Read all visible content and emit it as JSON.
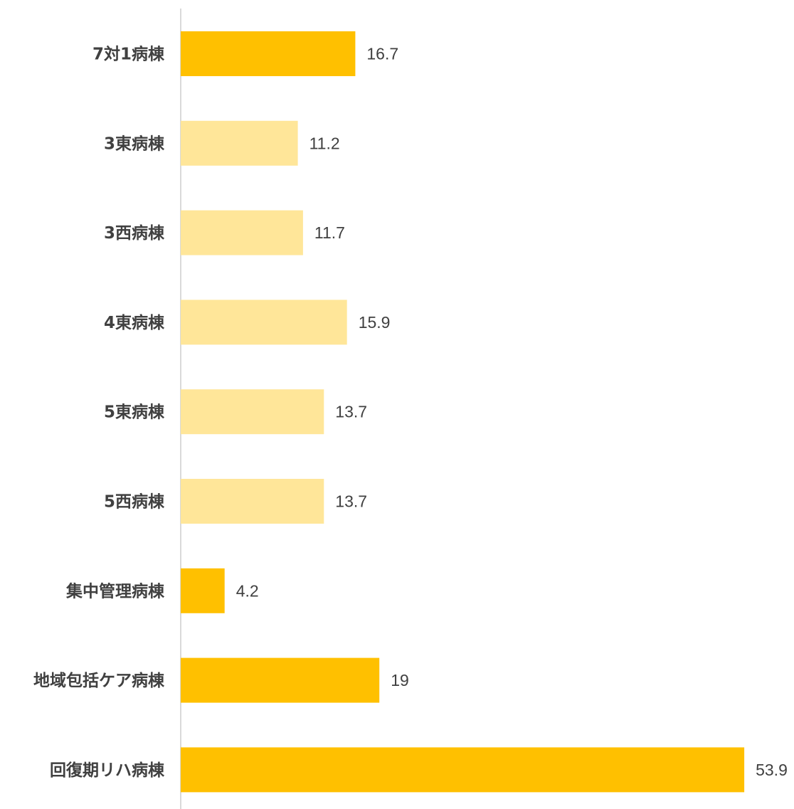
{
  "chart_data": {
    "type": "bar",
    "orientation": "horizontal",
    "categories": [
      "7対1病棟",
      "3東病棟",
      "3西病棟",
      "4東病棟",
      "5東病棟",
      "5西病棟",
      "集中管理病棟",
      "地域包括ケア病棟",
      "回復期リハ病棟"
    ],
    "values": [
      16.7,
      11.2,
      11.7,
      15.9,
      13.7,
      13.7,
      4.2,
      19,
      53.9
    ],
    "value_labels": [
      "16.7",
      "11.2",
      "11.7",
      "15.9",
      "13.7",
      "13.7",
      "4.2",
      "19",
      "53.9"
    ],
    "bar_colors": [
      "#FFC000",
      "#FFE699",
      "#FFE699",
      "#FFE699",
      "#FFE699",
      "#FFE699",
      "#FFC000",
      "#FFC000",
      "#FFC000"
    ],
    "axis_line_color": "#D9D9D9",
    "text_color": "#404040",
    "title": "",
    "xlabel": "",
    "ylabel": "",
    "xlim": [
      0,
      54
    ],
    "grid": false,
    "legend": "none"
  }
}
